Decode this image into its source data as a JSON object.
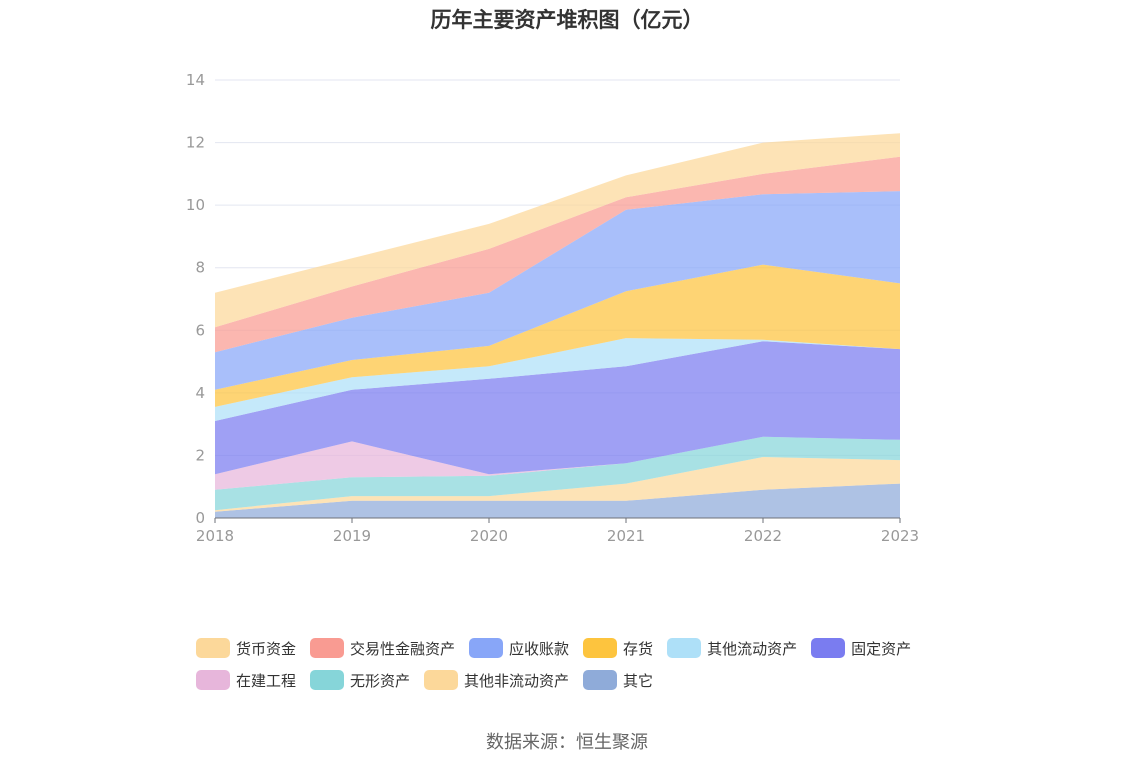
{
  "chart_data": {
    "type": "area",
    "stacked": true,
    "title": "历年主要资产堆积图（亿元）",
    "x": [
      "2018",
      "2019",
      "2020",
      "2021",
      "2022",
      "2023"
    ],
    "ylim": [
      0,
      14
    ],
    "yticks": [
      0,
      2,
      4,
      6,
      8,
      10,
      12,
      14
    ],
    "series": [
      {
        "name": "其它",
        "color": "#8fabd9",
        "values": [
          0.2,
          0.55,
          0.55,
          0.55,
          0.9,
          1.1
        ]
      },
      {
        "name": "其他非流动资产",
        "color": "#fcd89a",
        "values": [
          0.05,
          0.15,
          0.15,
          0.55,
          1.05,
          0.75
        ]
      },
      {
        "name": "无形资产",
        "color": "#86d5d9",
        "values": [
          0.65,
          0.6,
          0.65,
          0.65,
          0.65,
          0.65
        ]
      },
      {
        "name": "在建工程",
        "color": "#e7b6db",
        "values": [
          0.5,
          1.15,
          0.05,
          0.0,
          0.0,
          0.0
        ]
      },
      {
        "name": "固定资产",
        "color": "#7a7cf0",
        "values": [
          1.7,
          1.65,
          3.05,
          3.1,
          3.05,
          2.9
        ]
      },
      {
        "name": "其他流动资产",
        "color": "#aee0f8",
        "values": [
          0.45,
          0.4,
          0.4,
          0.9,
          0.05,
          0.0
        ]
      },
      {
        "name": "存货",
        "color": "#fdc43e",
        "values": [
          0.55,
          0.55,
          0.65,
          1.5,
          2.4,
          2.1
        ]
      },
      {
        "name": "应收账款",
        "color": "#88a6f8",
        "values": [
          1.2,
          1.35,
          1.7,
          2.6,
          2.25,
          2.95
        ]
      },
      {
        "name": "交易性金融资产",
        "color": "#f99b92",
        "values": [
          0.8,
          1.0,
          1.4,
          0.4,
          0.65,
          1.1
        ]
      },
      {
        "name": "货币资金",
        "color": "#fcd89a",
        "values": [
          1.1,
          0.9,
          0.8,
          0.7,
          1.0,
          0.75
        ]
      }
    ],
    "legend": [
      {
        "name": "货币资金",
        "color": "#fcd89a"
      },
      {
        "name": "交易性金融资产",
        "color": "#f99b92"
      },
      {
        "name": "应收账款",
        "color": "#88a6f8"
      },
      {
        "name": "存货",
        "color": "#fdc43e"
      },
      {
        "name": "其他流动资产",
        "color": "#aee0f8"
      },
      {
        "name": "固定资产",
        "color": "#7a7cf0"
      },
      {
        "name": "在建工程",
        "color": "#e7b6db"
      },
      {
        "name": "无形资产",
        "color": "#86d5d9"
      },
      {
        "name": "其他非流动资产",
        "color": "#fcd89a"
      },
      {
        "name": "其它",
        "color": "#8fabd9"
      }
    ],
    "legend_position": "bottom"
  },
  "source": "数据来源：恒生聚源"
}
